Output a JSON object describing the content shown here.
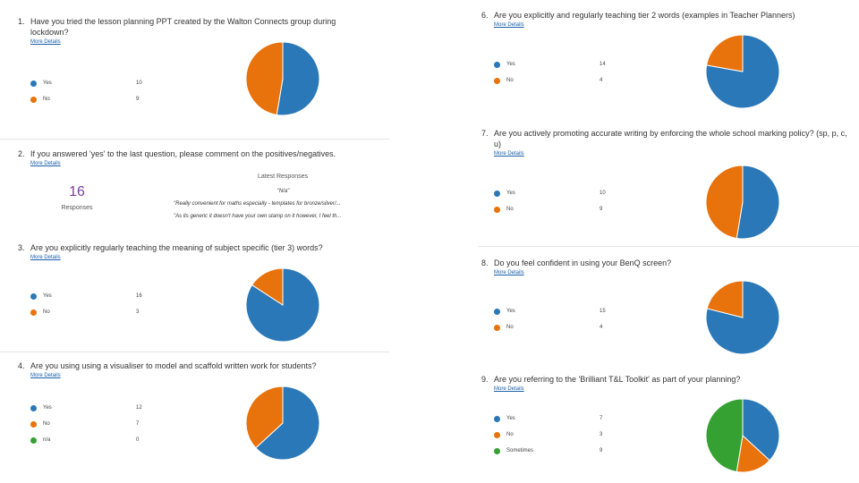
{
  "chart_data": [
    {
      "type": "pie",
      "number": "1.",
      "title": "Have you tried the lesson planning PPT created by the Walton Connects group during lockdown?",
      "link": "More Details",
      "categories": [
        "Yes",
        "No"
      ],
      "values": [
        10,
        9
      ],
      "colors": [
        "#2b78b8",
        "#e8720c"
      ]
    },
    {
      "type": "pie",
      "number": "3.",
      "title": "Are you explicitly regularly teaching the meaning of subject specific (tier 3) words?",
      "link": "More Details",
      "categories": [
        "Yes",
        "No"
      ],
      "values": [
        16,
        3
      ],
      "colors": [
        "#2b78b8",
        "#e8720c"
      ]
    },
    {
      "type": "pie",
      "number": "4.",
      "title": "Are you using using a visualiser to model and scaffold written work for students?",
      "link": "More Details",
      "categories": [
        "Yes",
        "No",
        "n/a"
      ],
      "values": [
        12,
        7,
        0
      ],
      "colors": [
        "#2b78b8",
        "#e8720c",
        "#36a133"
      ]
    },
    {
      "type": "pie",
      "number": "6.",
      "title": "Are you explicitly and regularly teaching tier 2 words (examples in Teacher Planners)",
      "link": "More Details",
      "categories": [
        "Yes",
        "No"
      ],
      "values": [
        14,
        4
      ],
      "colors": [
        "#2b78b8",
        "#e8720c"
      ]
    },
    {
      "type": "pie",
      "number": "7.",
      "title": "Are you actively promoting accurate writing by enforcing the whole school marking policy? (sp, p, c, u)",
      "link": "More Details",
      "categories": [
        "Yes",
        "No"
      ],
      "values": [
        10,
        9
      ],
      "colors": [
        "#2b78b8",
        "#e8720c"
      ]
    },
    {
      "type": "pie",
      "number": "8.",
      "title": "Do you feel confident in using your BenQ screen?",
      "link": "More Details",
      "categories": [
        "Yes",
        "No"
      ],
      "values": [
        15,
        4
      ],
      "colors": [
        "#2b78b8",
        "#e8720c"
      ]
    },
    {
      "type": "pie",
      "number": "9.",
      "title": "Are you referring to the 'Brilliant T&L Toolkit' as part of your planning?",
      "link": "More Details",
      "categories": [
        "Yes",
        "No",
        "Sometimes"
      ],
      "values": [
        7,
        3,
        9
      ],
      "colors": [
        "#2b78b8",
        "#e8720c",
        "#36a133"
      ]
    }
  ],
  "text_question": {
    "number": "2.",
    "title": "If you answered 'yes' to the last question, please comment on the positives/negatives.",
    "link": "More Details",
    "count": 16,
    "count_label": "Responses",
    "latest_label": "Latest Responses",
    "responses": [
      "\"N/a\"",
      "\"Really convenient for maths especially - templates for bronze/silver/...",
      "\"As its generic it doesn't have your own stamp on it however, I feel th..."
    ]
  }
}
